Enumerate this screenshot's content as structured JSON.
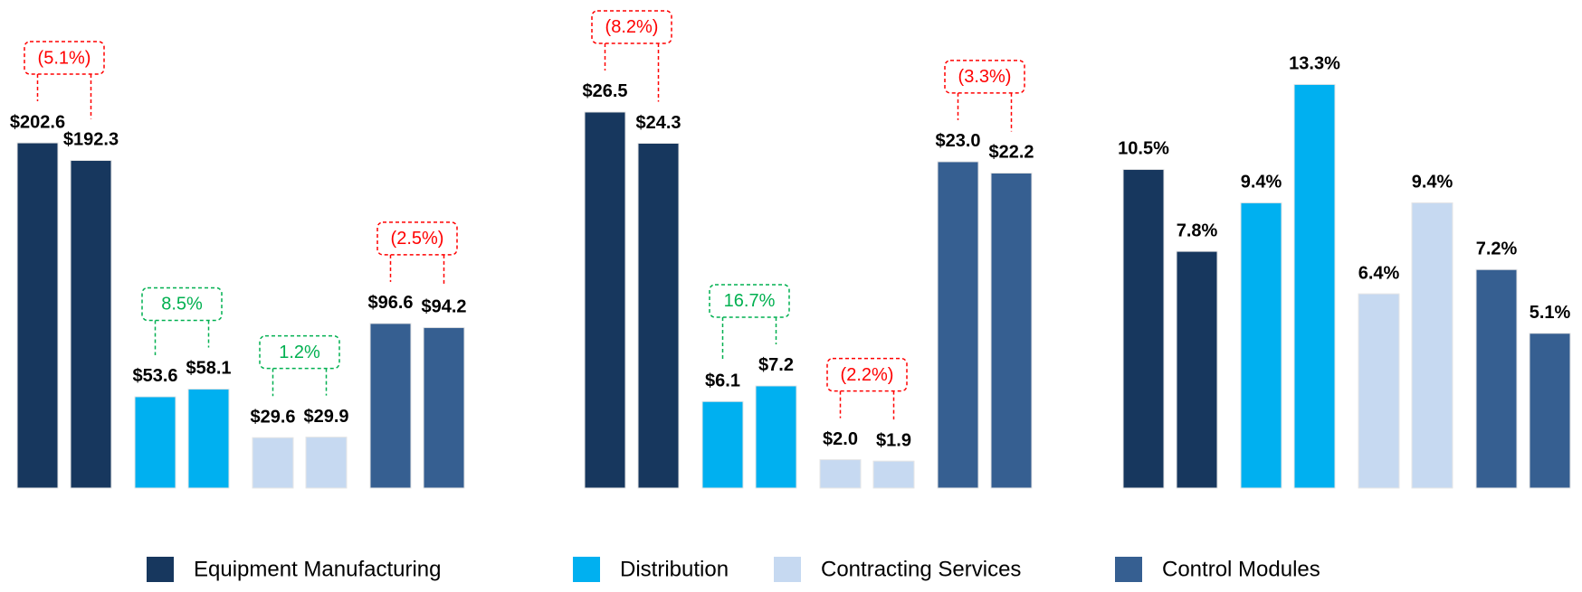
{
  "legend": [
    {
      "name": "Equipment Manufacturing",
      "color": "#17375e"
    },
    {
      "name": "Distribution",
      "color": "#00b0f0"
    },
    {
      "name": "Contracting Services",
      "color": "#c6d9f1"
    },
    {
      "name": "Control Modules",
      "color": "#365f91"
    }
  ],
  "negative_color": "#ff0000",
  "positive_color": "#00b050",
  "chart_data": [
    {
      "type": "bar",
      "ylim": [
        0,
        244
      ],
      "series": [
        {
          "values": [
            202.6,
            192.3
          ],
          "value_labels": [
            "$202.6",
            "$192.3"
          ],
          "change": {
            "value": -5.1,
            "label": "(5.1%)"
          }
        },
        {
          "values": [
            53.6,
            58.1
          ],
          "value_labels": [
            "$53.6",
            "$58.1"
          ],
          "change": {
            "value": 8.5,
            "label": "8.5%"
          }
        },
        {
          "values": [
            29.6,
            29.9
          ],
          "value_labels": [
            "$29.6",
            "$29.9"
          ],
          "change": {
            "value": 1.2,
            "label": "1.2%"
          }
        },
        {
          "values": [
            96.6,
            94.2
          ],
          "value_labels": [
            "$96.6",
            "$94.2"
          ],
          "change": {
            "value": -2.5,
            "label": "(2.5%)"
          }
        }
      ]
    },
    {
      "type": "bar",
      "ylim": [
        0,
        29.3
      ],
      "series": [
        {
          "values": [
            26.5,
            24.3
          ],
          "value_labels": [
            "$26.5",
            "$24.3"
          ],
          "change": {
            "value": -8.2,
            "label": "(8.2%)"
          }
        },
        {
          "values": [
            6.1,
            7.2
          ],
          "value_labels": [
            "$6.1",
            "$7.2"
          ],
          "change": {
            "value": 16.7,
            "label": "16.7%"
          }
        },
        {
          "values": [
            2.0,
            1.9
          ],
          "value_labels": [
            "$2.0",
            "$1.9"
          ],
          "change": {
            "value": -2.2,
            "label": "(2.2%)"
          }
        },
        {
          "values": [
            23.0,
            22.2
          ],
          "value_labels": [
            "$23.0",
            "$22.2"
          ],
          "change": {
            "value": -3.3,
            "label": "(3.3%)"
          }
        }
      ]
    },
    {
      "type": "bar",
      "ylim": [
        0,
        13.7
      ],
      "series": [
        {
          "values": [
            10.5,
            7.8
          ],
          "value_labels": [
            "10.5%",
            "7.8%"
          ]
        },
        {
          "values": [
            9.4,
            13.3
          ],
          "value_labels": [
            "9.4%",
            "13.3%"
          ]
        },
        {
          "values": [
            6.4,
            9.4
          ],
          "value_labels": [
            "6.4%",
            "9.4%"
          ]
        },
        {
          "values": [
            7.2,
            5.1
          ],
          "value_labels": [
            "7.2%",
            "5.1%"
          ]
        }
      ]
    }
  ]
}
